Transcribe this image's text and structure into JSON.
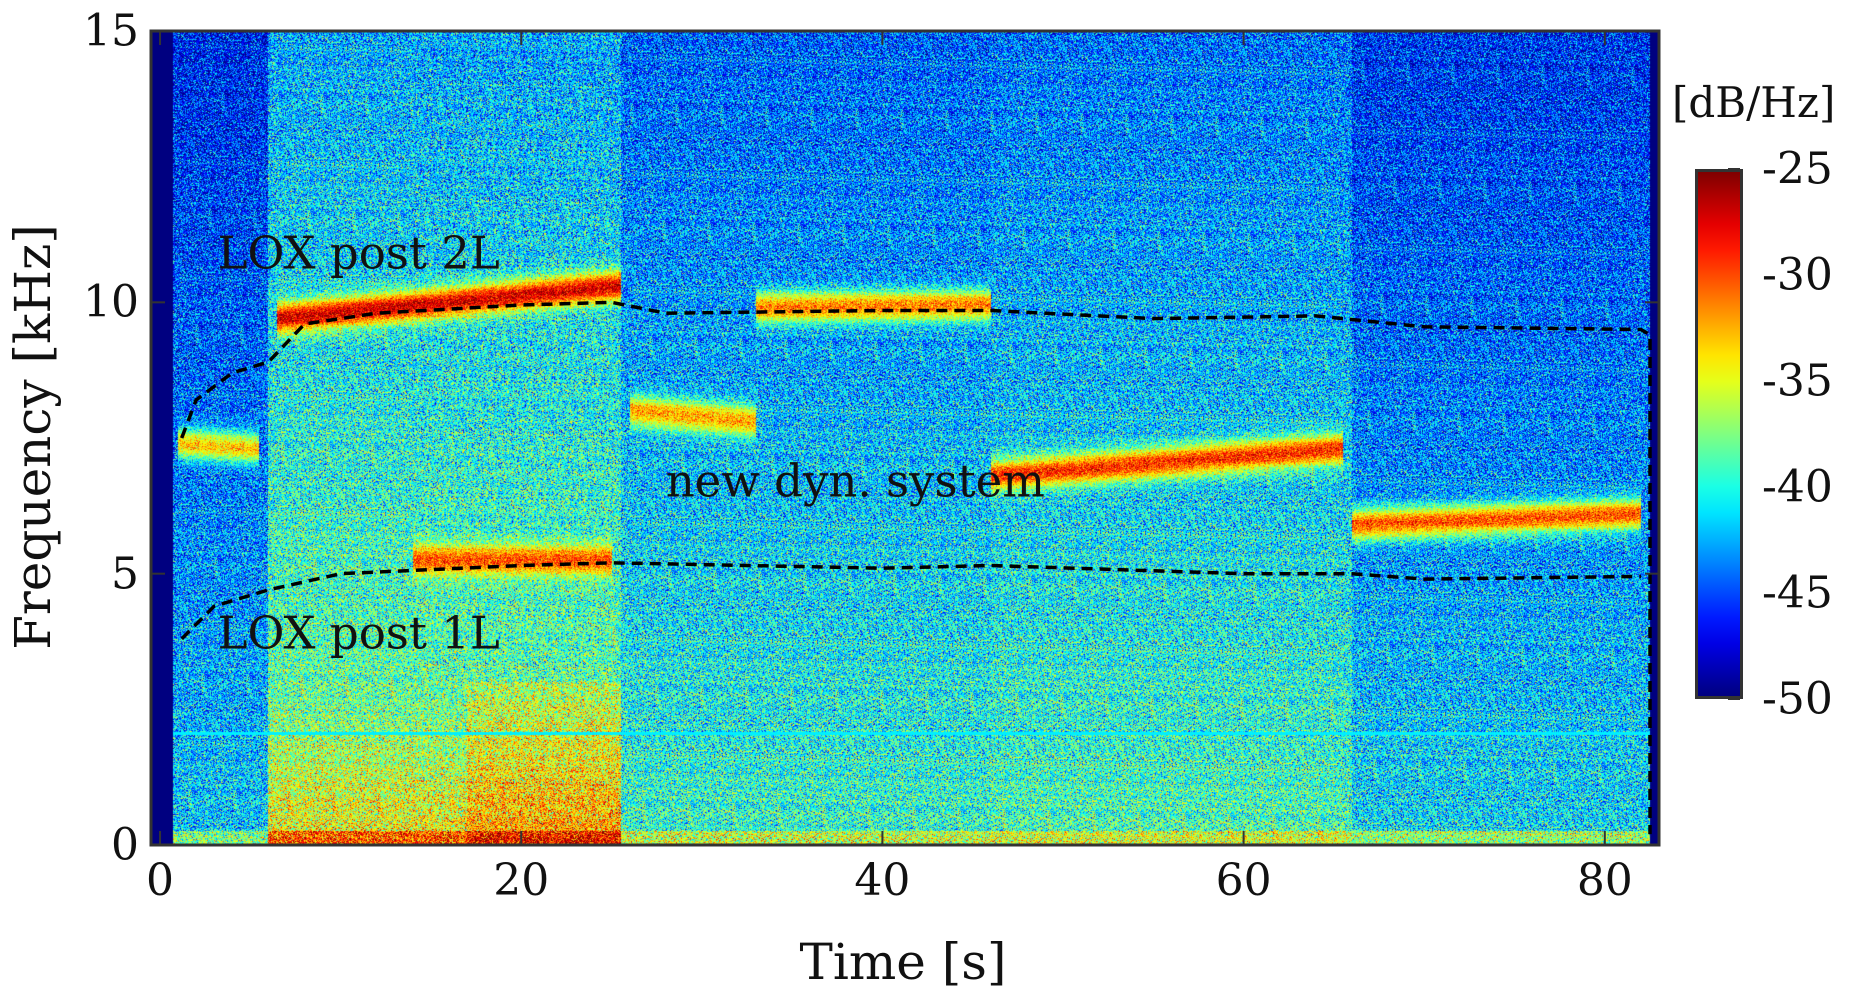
{
  "chart_data": {
    "type": "heatmap",
    "title": "",
    "xlabel": "Time [s]",
    "ylabel": "Frequency [kHz]",
    "xlim": [
      -0.5,
      83
    ],
    "ylim": [
      0,
      15
    ],
    "xticks": [
      0,
      20,
      40,
      60,
      80
    ],
    "yticks": [
      0,
      5,
      10,
      15
    ],
    "xtick_labels": [
      "0",
      "20",
      "40",
      "60",
      "80"
    ],
    "ytick_labels": [
      "0",
      "5",
      "10",
      "15"
    ],
    "colorbar": {
      "label": "[dB/Hz]",
      "range": [
        -50,
        -25
      ],
      "ticks": [
        -25,
        -30,
        -35,
        -40,
        -45,
        -50
      ],
      "tick_labels": [
        "-25",
        "-30",
        "-35",
        "-40",
        "-45",
        "-50"
      ],
      "colormap": "jet"
    },
    "annotations": [
      {
        "text": "LOX post 2L",
        "x": 11,
        "y": 10.9
      },
      {
        "text": "new dyn. system",
        "x": 38.5,
        "y": 6.7
      },
      {
        "text": "LOX post 1L",
        "x": 11,
        "y": 3.9
      }
    ],
    "series": [
      {
        "name": "LOX post 2L (dashed)",
        "style": "dashed",
        "color": "#000000",
        "x": [
          1.2,
          2,
          4,
          6,
          8,
          12,
          20,
          25,
          28,
          40,
          46,
          55,
          64,
          70,
          82,
          82.5,
          82.5
        ],
        "y": [
          7.5,
          8.2,
          8.7,
          8.9,
          9.6,
          9.8,
          9.95,
          10.0,
          9.8,
          9.85,
          9.85,
          9.7,
          9.75,
          9.55,
          9.5,
          9.4,
          0.2
        ]
      },
      {
        "name": "LOX post 1L (dashed)",
        "style": "dashed",
        "color": "#000000",
        "x": [
          1.2,
          3,
          6,
          10,
          20,
          25,
          40,
          46,
          60,
          66,
          70,
          82
        ],
        "y": [
          3.8,
          4.4,
          4.7,
          5.0,
          5.15,
          5.2,
          5.1,
          5.15,
          5.0,
          5.0,
          4.9,
          4.95
        ]
      }
    ],
    "ridges": [
      {
        "t": [
          1,
          5.5
        ],
        "f": [
          7.4,
          7.3
        ],
        "db": -33
      },
      {
        "t": [
          6.5,
          25.5
        ],
        "f": [
          9.7,
          10.3
        ],
        "db": -27
      },
      {
        "t": [
          14,
          25
        ],
        "f": [
          5.25,
          5.25
        ],
        "db": -30
      },
      {
        "t": [
          26,
          33
        ],
        "f": [
          8.0,
          7.8
        ],
        "db": -32
      },
      {
        "t": [
          33,
          46
        ],
        "f": [
          9.9,
          9.95
        ],
        "db": -31
      },
      {
        "t": [
          46,
          65.5
        ],
        "f": [
          6.8,
          7.3
        ],
        "db": -29
      },
      {
        "t": [
          66,
          82
        ],
        "f": [
          5.9,
          6.1
        ],
        "db": -30
      }
    ],
    "tones": [
      {
        "f": 2.05,
        "db": -41
      }
    ],
    "regions": [
      {
        "t": [
          -0.5,
          0.7
        ],
        "db": -50
      },
      {
        "t": [
          0.7,
          6
        ],
        "db": -44
      },
      {
        "t": [
          6,
          25.5
        ],
        "db": -40
      },
      {
        "t": [
          25.5,
          46
        ],
        "db": -42
      },
      {
        "t": [
          46,
          66
        ],
        "db": -41.5
      },
      {
        "t": [
          66,
          82.5
        ],
        "db": -43.5
      },
      {
        "t": [
          82.5,
          83
        ],
        "db": -50
      }
    ]
  }
}
